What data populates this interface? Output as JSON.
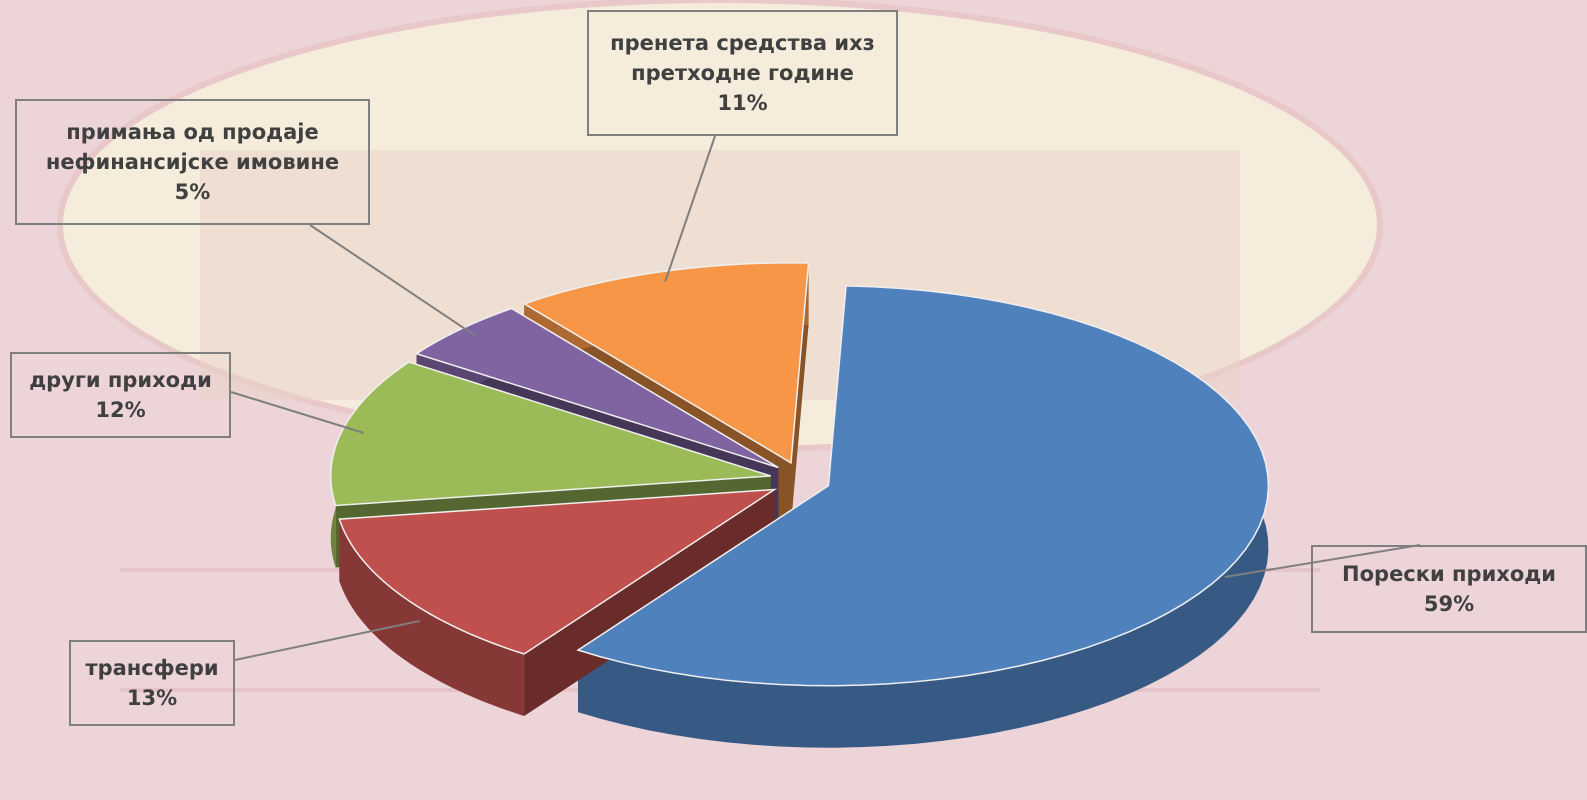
{
  "chart_data": {
    "type": "pie",
    "categories": [
      "Порески приходи",
      "трансфери",
      "други приходи",
      "примања од продаје нефинансијске имовине",
      "пренета средства ихз претходне године"
    ],
    "values": [
      59,
      13,
      12,
      5,
      11
    ],
    "value_labels": [
      "59%",
      "13%",
      "12%",
      "5%",
      "11%"
    ],
    "colors": [
      "#4f81bd",
      "#c0504d",
      "#9bbb59",
      "#8064a2",
      "#f79646"
    ]
  }
}
